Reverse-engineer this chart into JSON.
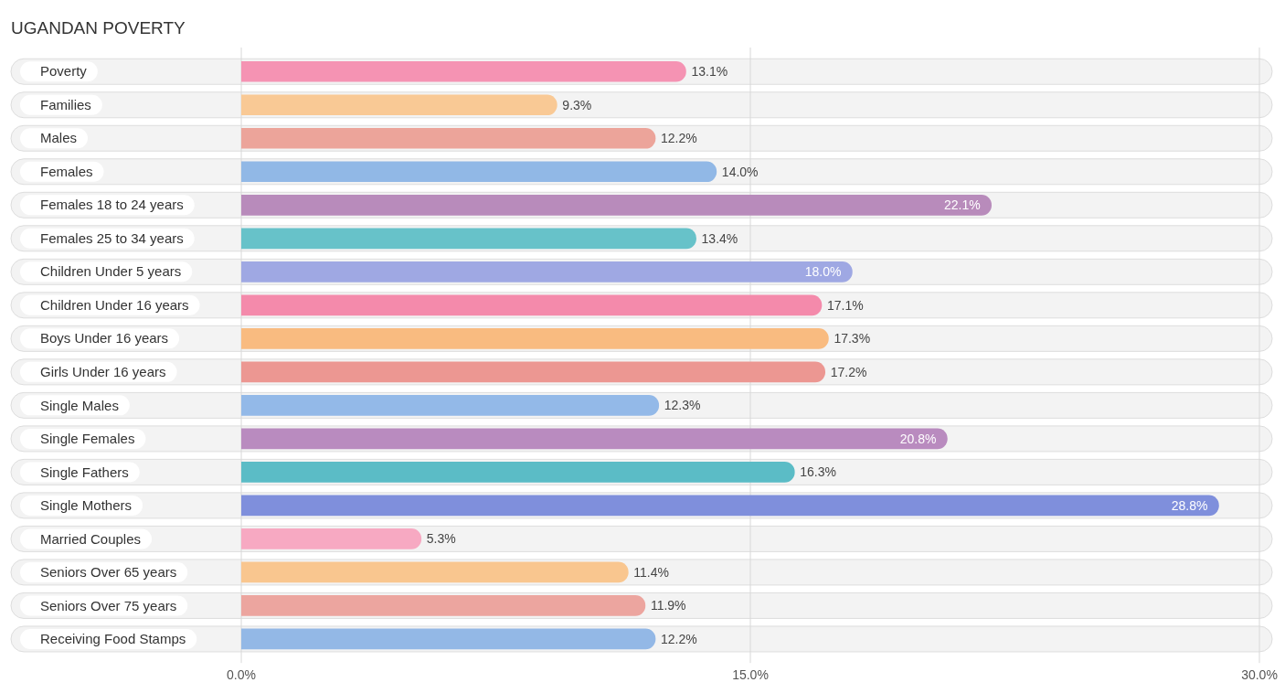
{
  "chart_data": {
    "type": "bar",
    "orientation": "horizontal",
    "title": "UGANDAN POVERTY",
    "categories": [
      "Poverty",
      "Families",
      "Males",
      "Females",
      "Females 18 to 24 years",
      "Females 25 to 34 years",
      "Children Under 5 years",
      "Children Under 16 years",
      "Boys Under 16 years",
      "Girls Under 16 years",
      "Single Males",
      "Single Females",
      "Single Fathers",
      "Single Mothers",
      "Married Couples",
      "Seniors Over 65 years",
      "Seniors Over 75 years",
      "Receiving Food Stamps"
    ],
    "values": [
      13.1,
      9.3,
      12.2,
      14.0,
      22.1,
      13.4,
      18.0,
      17.1,
      17.3,
      17.2,
      12.3,
      20.8,
      16.3,
      28.8,
      5.3,
      11.4,
      11.9,
      12.2
    ],
    "value_labels": [
      "13.1%",
      "9.3%",
      "12.2%",
      "14.0%",
      "22.1%",
      "13.4%",
      "18.0%",
      "17.1%",
      "17.3%",
      "17.2%",
      "12.3%",
      "20.8%",
      "16.3%",
      "28.8%",
      "5.3%",
      "11.4%",
      "11.9%",
      "12.2%"
    ],
    "colors": [
      "#f593b3",
      "#f9c995",
      "#eca49a",
      "#91b8e6",
      "#b88bbb",
      "#67c2c9",
      "#9fa8e3",
      "#f48aab",
      "#f9bb80",
      "#ec9792",
      "#93b9e8",
      "#b98bbf",
      "#5bbcc6",
      "#7f8fdc",
      "#f7a9c2",
      "#f9c68f",
      "#eca59f",
      "#93b8e6"
    ],
    "xlim": [
      0,
      30
    ],
    "xticks": [
      {
        "value": 0,
        "label": "0.0%"
      },
      {
        "value": 15,
        "label": "15.0%"
      },
      {
        "value": 30,
        "label": "30.0%"
      }
    ],
    "grid": "x",
    "legend": false
  }
}
